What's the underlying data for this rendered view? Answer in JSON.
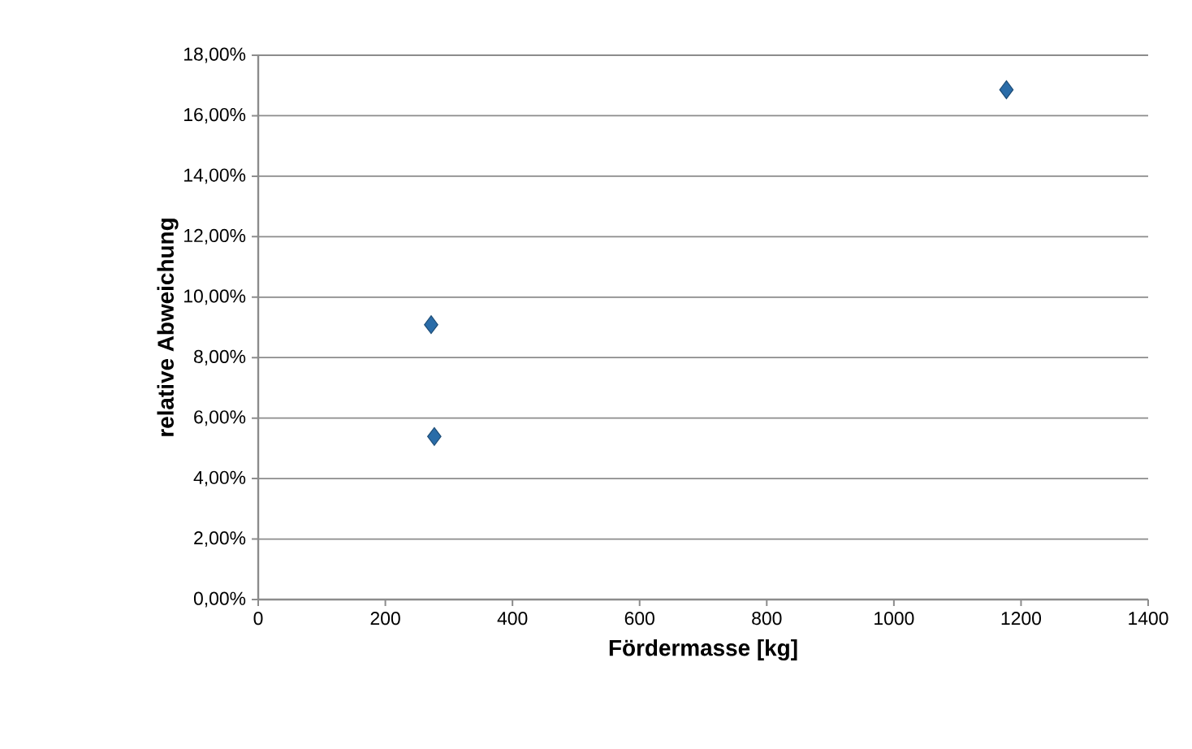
{
  "chart_data": {
    "type": "scatter",
    "xlabel": "Fördermasse [kg]",
    "ylabel": "relative Abweichung",
    "x": [
      272,
      277,
      1177
    ],
    "series": [
      {
        "color": "#2a6ca8",
        "values": [
          9.09,
          5.39,
          16.86
        ]
      }
    ],
    "marker": "diamond",
    "grid": "y",
    "xlim": [
      0,
      1400
    ],
    "xticks": [
      0,
      200,
      400,
      600,
      800,
      1000,
      1200,
      1400
    ],
    "ylim": [
      0,
      18
    ],
    "yticks": [
      {
        "value": 0,
        "label": "0,00%"
      },
      {
        "value": 2,
        "label": "2,00%"
      },
      {
        "value": 4,
        "label": "4,00%"
      },
      {
        "value": 6,
        "label": "6,00%"
      },
      {
        "value": 8,
        "label": "8,00%"
      },
      {
        "value": 10,
        "label": "10,00%"
      },
      {
        "value": 12,
        "label": "12,00%"
      },
      {
        "value": 14,
        "label": "14,00%"
      },
      {
        "value": 16,
        "label": "16,00%"
      },
      {
        "value": 18,
        "label": "18,00%"
      }
    ]
  }
}
